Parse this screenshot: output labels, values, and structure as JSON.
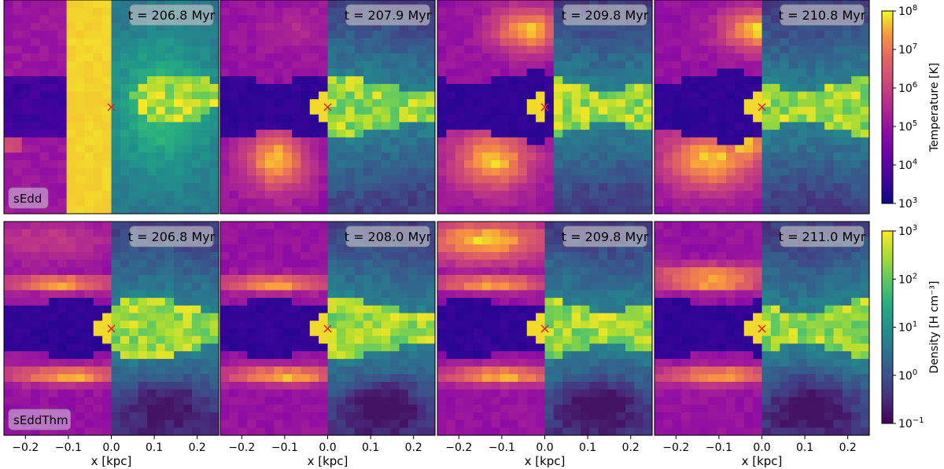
{
  "chart_data": {
    "type": "heatmap",
    "xlabel": "x [kpc]",
    "xlim": [
      -0.25,
      0.25
    ],
    "xticks": [
      -0.2,
      -0.1,
      0.0,
      0.1,
      0.2
    ],
    "xtick_labels": [
      "−0.2",
      "−0.1",
      "0.0",
      "0.1",
      "0.2"
    ],
    "left_half_quantity": "temperature",
    "right_half_quantity": "density",
    "marker": {
      "symbol": "×",
      "x": 0.0,
      "y": 0.0,
      "color": "#e8202a"
    },
    "rows": [
      {
        "label": "sEdd",
        "panels": [
          {
            "time_label": "t = 206.8 Myr",
            "time_myr": 206.8
          },
          {
            "time_label": "t = 207.9 Myr",
            "time_myr": 207.9
          },
          {
            "time_label": "t = 209.8 Myr",
            "time_myr": 209.8
          },
          {
            "time_label": "t = 210.8 Myr",
            "time_myr": 210.8
          }
        ]
      },
      {
        "label": "sEddThm",
        "panels": [
          {
            "time_label": "t = 206.8 Myr",
            "time_myr": 206.8
          },
          {
            "time_label": "t = 208.0 Myr",
            "time_myr": 208.0
          },
          {
            "time_label": "t = 209.8 Myr",
            "time_myr": 209.8
          },
          {
            "time_label": "t = 211.0 Myr",
            "time_myr": 211.0
          }
        ]
      }
    ],
    "colorbars": [
      {
        "quantity": "temperature",
        "label": "Temperature [K]",
        "cmap": "plasma",
        "scale": "log",
        "range": [
          1000.0,
          100000000.0
        ],
        "tick_exponents": [
          3,
          4,
          5,
          6,
          7,
          8
        ]
      },
      {
        "quantity": "density",
        "label": "Density [H cm⁻³]",
        "cmap": "viridis",
        "scale": "log",
        "range": [
          0.1,
          1000
        ],
        "tick_exponents": [
          -1,
          0,
          1,
          2,
          3
        ]
      }
    ]
  }
}
